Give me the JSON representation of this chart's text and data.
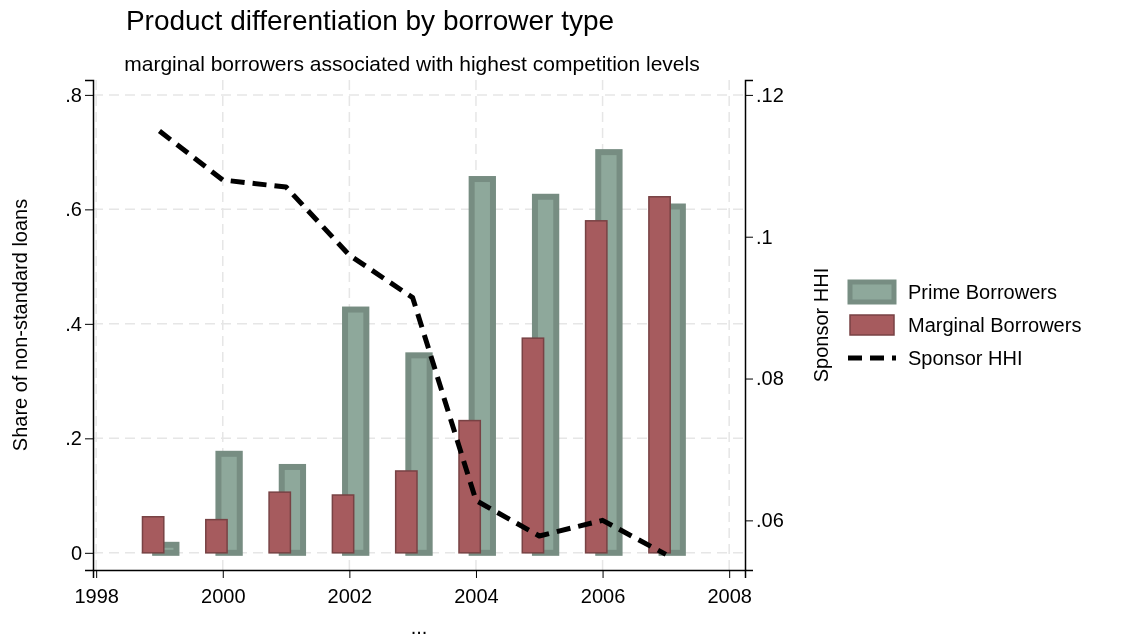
{
  "chart_data": {
    "type": "bar",
    "title": "Product differentiation by borrower type",
    "subtitle": "marginal borrowers associated with highest competition levels",
    "xlabel": "...",
    "ylabel": "Share of non-standard loans",
    "y2label": "Sponsor HHI",
    "x": [
      1999,
      2000,
      2001,
      2002,
      2003,
      2004,
      2005,
      2006,
      2007
    ],
    "series": [
      {
        "name": "Prime Borrowers",
        "color": "#8ea89b",
        "values": [
          0.014,
          0.173,
          0.15,
          0.425,
          0.345,
          0.653,
          0.622,
          0.7,
          0.605
        ]
      },
      {
        "name": "Marginal Borrowers",
        "color": "#a65b5e",
        "values": [
          0.063,
          0.058,
          0.106,
          0.101,
          0.143,
          0.231,
          0.375,
          0.58,
          0.622
        ]
      },
      {
        "name": "Sponsor HHI",
        "type": "line",
        "axis": "y2",
        "color": "#000000",
        "line_style": "dashed",
        "values": [
          0.1149,
          0.108,
          0.107,
          0.0974,
          0.0914,
          0.0628,
          0.0578,
          0.06,
          0.0552
        ]
      }
    ],
    "xlim": [
      1997.95,
      2008.25
    ],
    "xticks": [
      1998,
      2000,
      2002,
      2004,
      2006,
      2008
    ],
    "ylim": [
      -0.03,
      0.826
    ],
    "yticks": [
      0,
      {
        "value": 0.2,
        "label": ".2"
      },
      {
        "value": 0.4,
        "label": ".4"
      },
      {
        "value": 0.6,
        "label": ".6"
      },
      {
        "value": 0.8,
        "label": ".8"
      }
    ],
    "y2lim": [
      0.053,
      0.1221
    ],
    "y2ticks": [
      {
        "value": 0.06,
        "label": ".06"
      },
      {
        "value": 0.08,
        "label": ".08"
      },
      {
        "value": 0.1,
        "label": ".1"
      },
      {
        "value": 0.12,
        "label": ".12"
      }
    ],
    "grid": true,
    "legend": "right"
  }
}
